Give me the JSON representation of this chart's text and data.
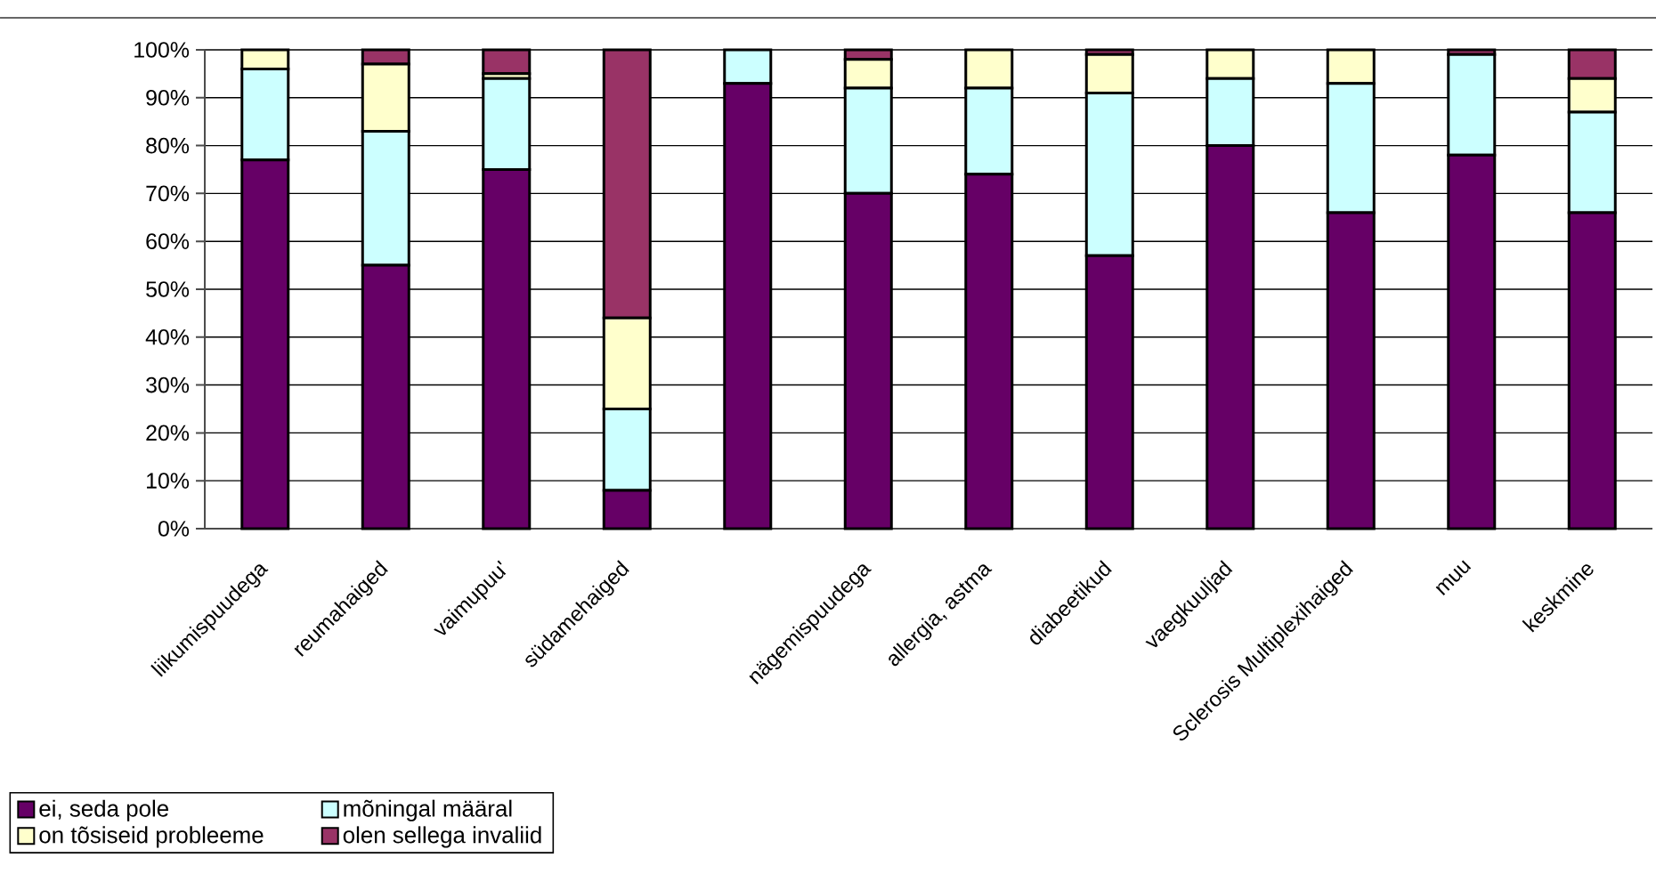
{
  "chart_data": {
    "type": "bar",
    "stacked": true,
    "categories": [
      "liikumispuudega",
      "reumahaiged",
      "vaimupuu'",
      "südamehaiged",
      null,
      "nägemispuudega",
      "allergia, astma",
      "diabeetikud",
      "vaegkuuljad",
      "Sclerosis Multiplexihaiged",
      "muu",
      "keskmine"
    ],
    "series": [
      {
        "name": "ei, seda pole",
        "color": "#660066",
        "values": [
          77,
          55,
          75,
          8,
          93,
          70,
          74,
          57,
          80,
          66,
          78,
          66
        ]
      },
      {
        "name": "mõningal määral",
        "color": "#ccffff",
        "values": [
          19,
          28,
          19,
          17,
          7,
          22,
          18,
          34,
          14,
          27,
          21,
          21
        ]
      },
      {
        "name": "on tõsiseid probleeme",
        "color": "#ffffcc",
        "values": [
          4,
          14,
          1,
          19,
          0,
          6,
          8,
          8,
          6,
          7,
          0,
          7
        ]
      },
      {
        "name": "olen sellega invaliid",
        "color": "#993366",
        "values": [
          0,
          3,
          5,
          56,
          0,
          2,
          0,
          1,
          0,
          0,
          1,
          6
        ]
      }
    ],
    "ylim": [
      0,
      100
    ],
    "yticks": [
      {
        "value": 0,
        "label": "0%"
      },
      {
        "value": 10,
        "label": "10%"
      },
      {
        "value": 20,
        "label": "20%"
      },
      {
        "value": 30,
        "label": "30%"
      },
      {
        "value": 40,
        "label": "40%"
      },
      {
        "value": 50,
        "label": "50%"
      },
      {
        "value": 60,
        "label": "60%"
      },
      {
        "value": 70,
        "label": "70%"
      },
      {
        "value": 80,
        "label": "80%"
      },
      {
        "value": 90,
        "label": "90%"
      },
      {
        "value": 100,
        "label": "100%"
      }
    ],
    "grid": "y",
    "legend": "bottom left"
  }
}
